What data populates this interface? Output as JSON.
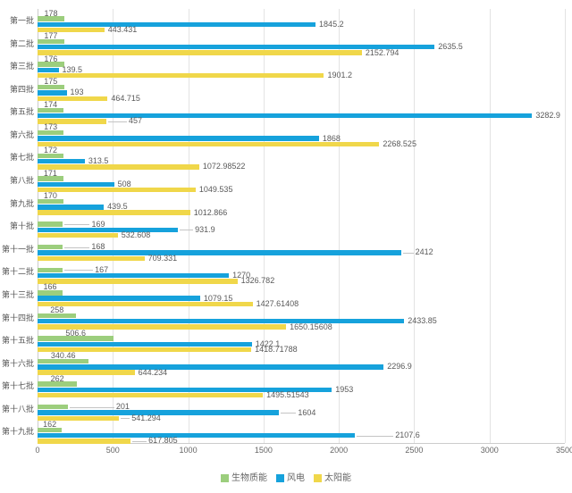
{
  "chart_data": {
    "type": "bar",
    "orientation": "horizontal",
    "title": "",
    "xlabel": "",
    "ylabel": "",
    "categories": [
      "第一批",
      "第二批",
      "第三批",
      "第四批",
      "第五批",
      "第六批",
      "第七批",
      "第八批",
      "第九批",
      "第十批",
      "第十一批",
      "第十二批",
      "第十三批",
      "第十四批",
      "第十五批",
      "第十六批",
      "第十七批",
      "第十八批",
      "第十九批"
    ],
    "series": [
      {
        "name": "生物质能",
        "color": "#9cce7d",
        "values": [
          178,
          177,
          176,
          175,
          174,
          173,
          172,
          171,
          170,
          169,
          168,
          167,
          166,
          258,
          506.6,
          340.46,
          262,
          201,
          162
        ]
      },
      {
        "name": "风电",
        "color": "#16a2dc",
        "values": [
          1845.2,
          2635.5,
          139.5,
          193,
          3282.9,
          1868,
          313.5,
          508,
          439.5,
          931.9,
          2412,
          1270,
          1079.15,
          2433.85,
          1422.1,
          2296.9,
          1953,
          1604,
          2107.6
        ]
      },
      {
        "name": "太阳能",
        "color": "#f0d74a",
        "values": [
          443.431,
          2152.794,
          1901.2,
          464.715,
          457,
          2268.525,
          1072.98522,
          1049.535,
          1012.866,
          532.608,
          709.331,
          1326.782,
          1427.61408,
          1650.15608,
          1418.71788,
          644.234,
          1495.51543,
          541.294,
          617.805
        ]
      }
    ],
    "xlim": [
      0,
      3500
    ],
    "x_ticks": [
      0,
      500,
      1000,
      1500,
      2000,
      2500,
      3000,
      3500
    ],
    "grid": true,
    "value_labels": true,
    "legend_position": "bottom",
    "label_leaders": [
      {
        "series": 0,
        "row": 9,
        "offset": 32
      },
      {
        "series": 0,
        "row": 10,
        "offset": 32
      },
      {
        "series": 0,
        "row": 11,
        "offset": 36
      },
      {
        "series": 0,
        "row": 17,
        "offset": 54
      },
      {
        "series": 1,
        "row": 9,
        "offset": 19
      },
      {
        "series": 1,
        "row": 10,
        "offset": 16
      },
      {
        "series": 1,
        "row": 17,
        "offset": 21
      },
      {
        "series": 1,
        "row": 18,
        "offset": 45
      },
      {
        "series": 2,
        "row": 4,
        "offset": 25
      },
      {
        "series": 2,
        "row": 17,
        "offset": 14
      },
      {
        "series": 2,
        "row": 18,
        "offset": 20
      }
    ],
    "colors": {
      "grid": "#e3e3e3",
      "axis": "#cccccc",
      "text": "#595959",
      "leader": "#c4c4c4"
    }
  }
}
